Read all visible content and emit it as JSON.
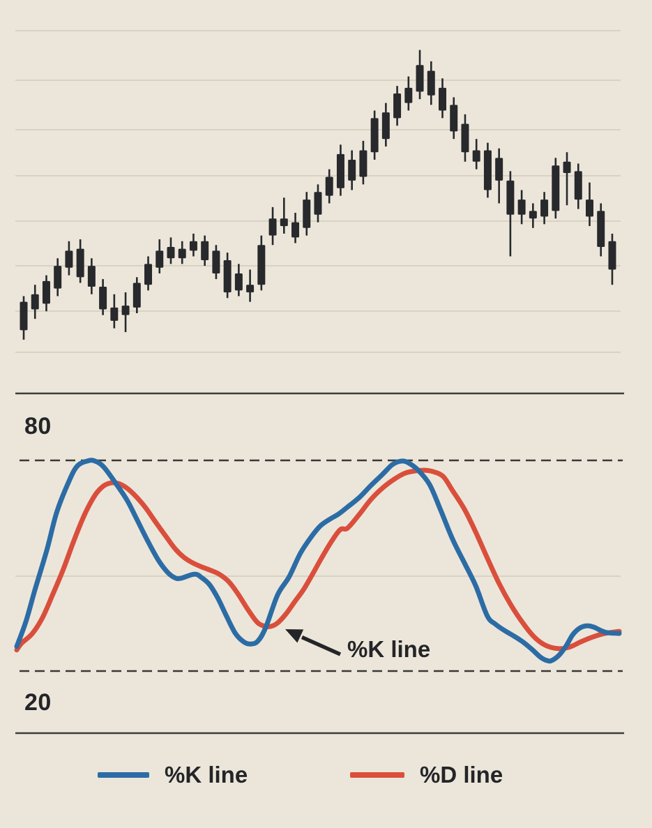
{
  "figure": {
    "description": "Candlestick price chart with a stochastic oscillator panel below showing %K and %D lines",
    "overbought_label": "80",
    "oversold_label": "20",
    "annotation": {
      "text": "%K line"
    }
  },
  "legend": {
    "items": [
      {
        "label": "%K line",
        "color": "#2c6ca5"
      },
      {
        "label": "%D line",
        "color": "#d94f3c"
      }
    ]
  },
  "colors": {
    "background": "#ece6da",
    "candle": "#27292c",
    "k_line": "#2c6ca5",
    "d_line": "#d94f3c",
    "grid": "#d2ccbd",
    "axis": "#3d3c39",
    "dashed": "#3a3936",
    "text": "#232528",
    "arrow": "#232528"
  },
  "chart_data": {
    "type": "candlestick",
    "title": "",
    "grid": true,
    "panels": [
      {
        "name": "price",
        "type": "candlestick",
        "ylim": [
          0,
          100
        ],
        "axis_labels_visible": false,
        "candle_format": [
          "high",
          "body_top",
          "body_bottom",
          "low"
        ],
        "candles": [
          [
            25.5,
            24,
            16.5,
            14
          ],
          [
            28.5,
            26,
            22,
            19.5
          ],
          [
            31,
            29.5,
            23.5,
            21.5
          ],
          [
            35.5,
            33.5,
            27.5,
            25.5
          ],
          [
            40,
            37.5,
            33,
            31
          ],
          [
            40.5,
            38,
            30.5,
            29
          ],
          [
            35.5,
            33.5,
            28,
            26
          ],
          [
            30,
            28,
            22,
            20.5
          ],
          [
            26,
            22.5,
            19,
            17
          ],
          [
            26.5,
            23,
            20.5,
            16
          ],
          [
            30.5,
            29,
            22.5,
            21
          ],
          [
            36,
            34,
            28.5,
            27
          ],
          [
            40.5,
            37.5,
            33,
            31.5
          ],
          [
            41,
            38.5,
            35.5,
            34
          ],
          [
            40,
            38,
            35.5,
            34
          ],
          [
            42,
            40,
            37.5,
            36
          ],
          [
            41.5,
            40,
            35,
            33.5
          ],
          [
            39,
            37.5,
            31.5,
            30
          ],
          [
            37,
            35,
            26.5,
            25
          ],
          [
            34,
            31.5,
            27,
            25.5
          ],
          [
            32.5,
            28.5,
            26.5,
            24
          ],
          [
            41.5,
            39,
            28.5,
            27
          ],
          [
            49,
            46,
            41.5,
            39
          ],
          [
            51.5,
            46,
            44,
            42
          ],
          [
            47.5,
            45,
            41,
            39.5
          ],
          [
            53,
            51,
            43.5,
            41.5
          ],
          [
            55,
            53,
            47,
            45
          ],
          [
            59,
            57,
            52,
            50
          ],
          [
            65.5,
            63,
            54,
            52
          ],
          [
            64,
            61.5,
            56,
            53.5
          ],
          [
            66.5,
            64,
            57,
            55
          ],
          [
            74.5,
            72.5,
            63.5,
            61.5
          ],
          [
            76.5,
            74,
            67,
            65
          ],
          [
            81,
            79,
            72.5,
            70.5
          ],
          [
            83.5,
            80.5,
            76.5,
            74.5
          ],
          [
            90.5,
            86.5,
            79.5,
            77.5
          ],
          [
            87.5,
            85,
            78.5,
            76
          ],
          [
            83,
            80.5,
            74.5,
            72.5
          ],
          [
            78,
            76,
            69,
            67
          ],
          [
            73.5,
            71,
            63.5,
            61
          ],
          [
            67,
            64,
            61,
            59
          ],
          [
            66,
            64,
            53.5,
            51.5
          ],
          [
            64.5,
            62,
            56,
            50
          ],
          [
            58.5,
            56,
            47,
            36
          ],
          [
            53.5,
            51,
            47,
            44.5
          ],
          [
            50,
            48,
            46,
            43.5
          ],
          [
            53,
            51,
            46.5,
            44.5
          ],
          [
            62,
            60,
            48,
            46
          ],
          [
            63.5,
            61,
            58,
            49.5
          ],
          [
            60.5,
            58.5,
            51,
            48.5
          ],
          [
            55.5,
            51,
            46.5,
            44
          ],
          [
            50,
            48,
            38.5,
            36
          ],
          [
            42,
            40,
            32.5,
            28.5
          ]
        ]
      },
      {
        "name": "stochastic-oscillator",
        "type": "line",
        "ylim": [
          0,
          100
        ],
        "reference_levels": {
          "overbought": 80,
          "oversold": 20
        },
        "x_unit": "percent-of-width",
        "series": [
          {
            "name": "%K line",
            "points": [
              [
                0,
                27
              ],
              [
                1.5,
                34
              ],
              [
                3,
                43
              ],
              [
                5,
                54.5
              ],
              [
                6.6,
                65
              ],
              [
                8.4,
                73
              ],
              [
                10,
                78.3
              ],
              [
                11.9,
                79.9
              ],
              [
                13,
                79.8
              ],
              [
                14.4,
                78.2
              ],
              [
                16.3,
                73.8
              ],
              [
                18.3,
                68.7
              ],
              [
                20,
                63
              ],
              [
                21.7,
                57.2
              ],
              [
                23.5,
                51.6
              ],
              [
                25,
                48.2
              ],
              [
                26.2,
                46.6
              ],
              [
                27.2,
                46.4
              ],
              [
                29.5,
                47.6
              ],
              [
                30.7,
                46.6
              ],
              [
                32,
                44.6
              ],
              [
                33.4,
                40.7
              ],
              [
                34.8,
                35.7
              ],
              [
                36.3,
                30.7
              ],
              [
                37.7,
                28.3
              ],
              [
                38.8,
                27.7
              ],
              [
                40,
                28.5
              ],
              [
                41.3,
                32.3
              ],
              [
                43.3,
                41.7
              ],
              [
                45.2,
                46.8
              ],
              [
                47.1,
                53.6
              ],
              [
                49.1,
                58.7
              ],
              [
                50.5,
                61.5
              ],
              [
                52,
                63.3
              ],
              [
                53.4,
                64.7
              ],
              [
                54.9,
                66.7
              ],
              [
                56.9,
                69.5
              ],
              [
                58.7,
                72.7
              ],
              [
                60.7,
                76
              ],
              [
                62.2,
                78.6
              ],
              [
                63.3,
                79.6
              ],
              [
                64.2,
                79.8
              ],
              [
                65.1,
                79.2
              ],
              [
                66.5,
                77.4
              ],
              [
                68.5,
                73.2
              ],
              [
                70.3,
                66.1
              ],
              [
                72.3,
                57.7
              ],
              [
                74.3,
                50.8
              ],
              [
                76.2,
                44.2
              ],
              [
                78.1,
                35.7
              ],
              [
                79.5,
                33.3
              ],
              [
                81,
                31.5
              ],
              [
                82.4,
                30.1
              ],
              [
                84,
                28.3
              ],
              [
                85.5,
                26.2
              ],
              [
                86.9,
                24
              ],
              [
                88,
                23
              ],
              [
                88.8,
                23
              ],
              [
                90,
                24.5
              ],
              [
                91.2,
                27.2
              ],
              [
                92.3,
                30.4
              ],
              [
                93.5,
                32.3
              ],
              [
                94.7,
                32.9
              ],
              [
                95.8,
                32.5
              ],
              [
                97,
                31.5
              ],
              [
                98.1,
                30.9
              ],
              [
                100,
                30.7
              ]
            ]
          },
          {
            "name": "%D line",
            "points": [
              [
                0,
                26
              ],
              [
                0.8,
                27.9
              ],
              [
                2.6,
                30.7
              ],
              [
                4.3,
                35.3
              ],
              [
                6,
                41.9
              ],
              [
                7.8,
                49.3
              ],
              [
                9.5,
                57.2
              ],
              [
                11.3,
                64.7
              ],
              [
                13,
                70.1
              ],
              [
                14.4,
                72.7
              ],
              [
                15.7,
                73.6
              ],
              [
                16.9,
                73.4
              ],
              [
                18.3,
                72.1
              ],
              [
                19.8,
                69.7
              ],
              [
                21.4,
                66.5
              ],
              [
                23.1,
                62.3
              ],
              [
                24.7,
                58.5
              ],
              [
                26.2,
                55
              ],
              [
                27.6,
                52.6
              ],
              [
                29,
                51
              ],
              [
                30.5,
                49.8
              ],
              [
                32,
                48.8
              ],
              [
                33.6,
                47.6
              ],
              [
                35.1,
                45.6
              ],
              [
                36.6,
                42.3
              ],
              [
                38.3,
                37.7
              ],
              [
                39.8,
                34.1
              ],
              [
                40.9,
                32.9
              ],
              [
                42.1,
                32.7
              ],
              [
                43.3,
                33.7
              ],
              [
                44.7,
                36.3
              ],
              [
                46.2,
                39.9
              ],
              [
                47.6,
                43.2
              ],
              [
                49.1,
                47.6
              ],
              [
                50.6,
                52.2
              ],
              [
                52.2,
                56.8
              ],
              [
                53.7,
                60.3
              ],
              [
                54.9,
                60.7
              ],
              [
                56.9,
                64.7
              ],
              [
                58.7,
                68.7
              ],
              [
                60.7,
                72.1
              ],
              [
                62.7,
                74.7
              ],
              [
                64.5,
                76.4
              ],
              [
                66.2,
                77
              ],
              [
                67.7,
                77.2
              ],
              [
                69.1,
                76.8
              ],
              [
                70.8,
                75.4
              ],
              [
                72.3,
                71.5
              ],
              [
                74.3,
                66.1
              ],
              [
                76.2,
                59.5
              ],
              [
                78.1,
                52.2
              ],
              [
                80.1,
                44.8
              ],
              [
                82,
                38.9
              ],
              [
                84,
                33.7
              ],
              [
                85.9,
                29.7
              ],
              [
                87.8,
                27.3
              ],
              [
                89.8,
                26.4
              ],
              [
                91.7,
                26.8
              ],
              [
                93.6,
                28.3
              ],
              [
                95.6,
                29.7
              ],
              [
                97.6,
                30.7
              ],
              [
                100,
                31.3
              ]
            ]
          }
        ]
      }
    ]
  }
}
